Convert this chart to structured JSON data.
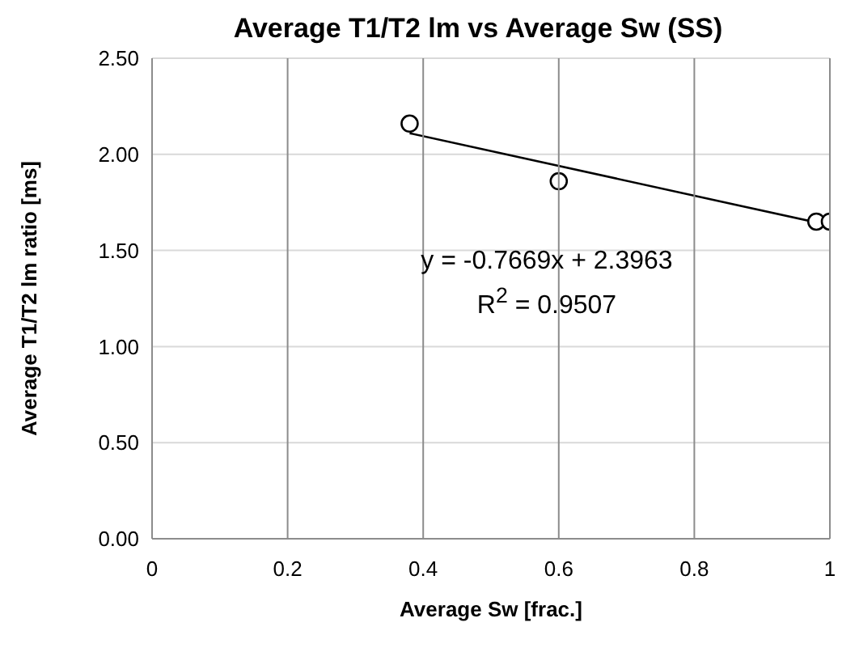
{
  "chart_data": {
    "type": "scatter",
    "title": "Average T1/T2 lm vs Average Sw (SS)",
    "xlabel": "Average Sw [frac.]",
    "ylabel": "Average T1/T2 lm ratio [ms]",
    "xlim": [
      0,
      1
    ],
    "xticks": [
      0,
      0.2,
      0.4,
      0.6,
      0.8,
      1
    ],
    "ylim": [
      0,
      2.5
    ],
    "yticks": [
      {
        "value": 0,
        "label": "0.00"
      },
      {
        "value": 0.5,
        "label": "0.50"
      },
      {
        "value": 1,
        "label": "1.00"
      },
      {
        "value": 1.5,
        "label": "1.50"
      },
      {
        "value": 2,
        "label": "2.00"
      },
      {
        "value": 2.5,
        "label": "2.50"
      }
    ],
    "grid": true,
    "series": [
      {
        "color": "#000000",
        "marker": "circle",
        "x": [
          0.38,
          0.6,
          0.98,
          1.0
        ],
        "values": [
          2.16,
          1.86,
          1.65,
          1.65
        ]
      },
      {
        "type": "line",
        "color": "#000000",
        "marker": "none",
        "x": [
          0.38,
          1
        ],
        "values": [
          2.11,
          1.63
        ]
      }
    ],
    "annotations": [
      "y = -0.7669x + 2.3963",
      "R$^{2}$ = 0.9507"
    ]
  }
}
